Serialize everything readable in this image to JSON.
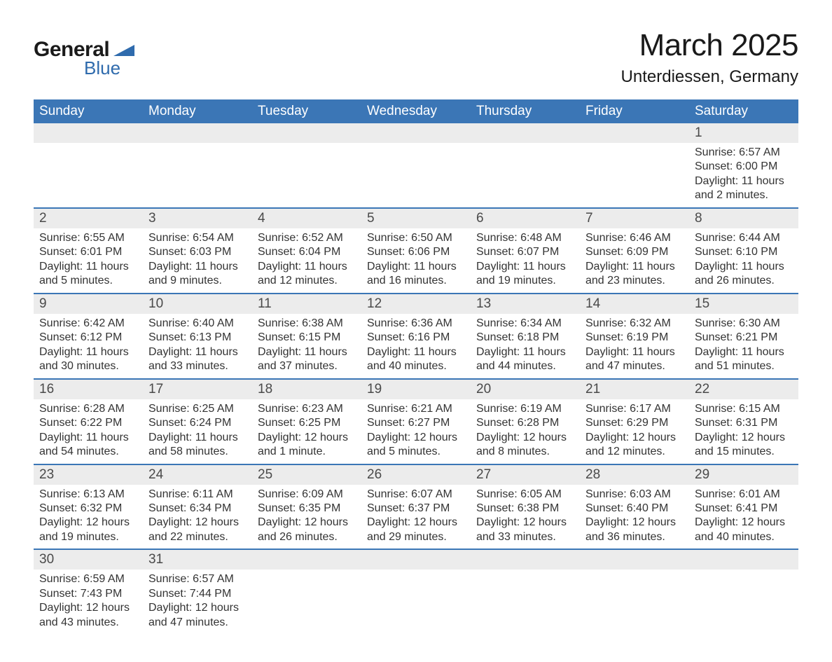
{
  "logo": {
    "text_general": "General",
    "text_blue": "Blue",
    "triangle_color": "#2f6bad",
    "text_color_dark": "#1a1a1a"
  },
  "title": {
    "month": "March 2025",
    "location": "Unterdiessen, Germany"
  },
  "colors": {
    "header_bg": "#3b76b6",
    "header_text": "#ffffff",
    "daynum_bg": "#ececec",
    "daynum_text": "#4a4a4a",
    "border": "#3b76b6",
    "body_text": "#333333"
  },
  "weekdays": [
    "Sunday",
    "Monday",
    "Tuesday",
    "Wednesday",
    "Thursday",
    "Friday",
    "Saturday"
  ],
  "weeks": [
    {
      "nums": [
        "",
        "",
        "",
        "",
        "",
        "",
        "1"
      ],
      "details": [
        null,
        null,
        null,
        null,
        null,
        null,
        {
          "sunrise": "Sunrise: 6:57 AM",
          "sunset": "Sunset: 6:00 PM",
          "day1": "Daylight: 11 hours",
          "day2": "and 2 minutes."
        }
      ]
    },
    {
      "nums": [
        "2",
        "3",
        "4",
        "5",
        "6",
        "7",
        "8"
      ],
      "details": [
        {
          "sunrise": "Sunrise: 6:55 AM",
          "sunset": "Sunset: 6:01 PM",
          "day1": "Daylight: 11 hours",
          "day2": "and 5 minutes."
        },
        {
          "sunrise": "Sunrise: 6:54 AM",
          "sunset": "Sunset: 6:03 PM",
          "day1": "Daylight: 11 hours",
          "day2": "and 9 minutes."
        },
        {
          "sunrise": "Sunrise: 6:52 AM",
          "sunset": "Sunset: 6:04 PM",
          "day1": "Daylight: 11 hours",
          "day2": "and 12 minutes."
        },
        {
          "sunrise": "Sunrise: 6:50 AM",
          "sunset": "Sunset: 6:06 PM",
          "day1": "Daylight: 11 hours",
          "day2": "and 16 minutes."
        },
        {
          "sunrise": "Sunrise: 6:48 AM",
          "sunset": "Sunset: 6:07 PM",
          "day1": "Daylight: 11 hours",
          "day2": "and 19 minutes."
        },
        {
          "sunrise": "Sunrise: 6:46 AM",
          "sunset": "Sunset: 6:09 PM",
          "day1": "Daylight: 11 hours",
          "day2": "and 23 minutes."
        },
        {
          "sunrise": "Sunrise: 6:44 AM",
          "sunset": "Sunset: 6:10 PM",
          "day1": "Daylight: 11 hours",
          "day2": "and 26 minutes."
        }
      ]
    },
    {
      "nums": [
        "9",
        "10",
        "11",
        "12",
        "13",
        "14",
        "15"
      ],
      "details": [
        {
          "sunrise": "Sunrise: 6:42 AM",
          "sunset": "Sunset: 6:12 PM",
          "day1": "Daylight: 11 hours",
          "day2": "and 30 minutes."
        },
        {
          "sunrise": "Sunrise: 6:40 AM",
          "sunset": "Sunset: 6:13 PM",
          "day1": "Daylight: 11 hours",
          "day2": "and 33 minutes."
        },
        {
          "sunrise": "Sunrise: 6:38 AM",
          "sunset": "Sunset: 6:15 PM",
          "day1": "Daylight: 11 hours",
          "day2": "and 37 minutes."
        },
        {
          "sunrise": "Sunrise: 6:36 AM",
          "sunset": "Sunset: 6:16 PM",
          "day1": "Daylight: 11 hours",
          "day2": "and 40 minutes."
        },
        {
          "sunrise": "Sunrise: 6:34 AM",
          "sunset": "Sunset: 6:18 PM",
          "day1": "Daylight: 11 hours",
          "day2": "and 44 minutes."
        },
        {
          "sunrise": "Sunrise: 6:32 AM",
          "sunset": "Sunset: 6:19 PM",
          "day1": "Daylight: 11 hours",
          "day2": "and 47 minutes."
        },
        {
          "sunrise": "Sunrise: 6:30 AM",
          "sunset": "Sunset: 6:21 PM",
          "day1": "Daylight: 11 hours",
          "day2": "and 51 minutes."
        }
      ]
    },
    {
      "nums": [
        "16",
        "17",
        "18",
        "19",
        "20",
        "21",
        "22"
      ],
      "details": [
        {
          "sunrise": "Sunrise: 6:28 AM",
          "sunset": "Sunset: 6:22 PM",
          "day1": "Daylight: 11 hours",
          "day2": "and 54 minutes."
        },
        {
          "sunrise": "Sunrise: 6:25 AM",
          "sunset": "Sunset: 6:24 PM",
          "day1": "Daylight: 11 hours",
          "day2": "and 58 minutes."
        },
        {
          "sunrise": "Sunrise: 6:23 AM",
          "sunset": "Sunset: 6:25 PM",
          "day1": "Daylight: 12 hours",
          "day2": "and 1 minute."
        },
        {
          "sunrise": "Sunrise: 6:21 AM",
          "sunset": "Sunset: 6:27 PM",
          "day1": "Daylight: 12 hours",
          "day2": "and 5 minutes."
        },
        {
          "sunrise": "Sunrise: 6:19 AM",
          "sunset": "Sunset: 6:28 PM",
          "day1": "Daylight: 12 hours",
          "day2": "and 8 minutes."
        },
        {
          "sunrise": "Sunrise: 6:17 AM",
          "sunset": "Sunset: 6:29 PM",
          "day1": "Daylight: 12 hours",
          "day2": "and 12 minutes."
        },
        {
          "sunrise": "Sunrise: 6:15 AM",
          "sunset": "Sunset: 6:31 PM",
          "day1": "Daylight: 12 hours",
          "day2": "and 15 minutes."
        }
      ]
    },
    {
      "nums": [
        "23",
        "24",
        "25",
        "26",
        "27",
        "28",
        "29"
      ],
      "details": [
        {
          "sunrise": "Sunrise: 6:13 AM",
          "sunset": "Sunset: 6:32 PM",
          "day1": "Daylight: 12 hours",
          "day2": "and 19 minutes."
        },
        {
          "sunrise": "Sunrise: 6:11 AM",
          "sunset": "Sunset: 6:34 PM",
          "day1": "Daylight: 12 hours",
          "day2": "and 22 minutes."
        },
        {
          "sunrise": "Sunrise: 6:09 AM",
          "sunset": "Sunset: 6:35 PM",
          "day1": "Daylight: 12 hours",
          "day2": "and 26 minutes."
        },
        {
          "sunrise": "Sunrise: 6:07 AM",
          "sunset": "Sunset: 6:37 PM",
          "day1": "Daylight: 12 hours",
          "day2": "and 29 minutes."
        },
        {
          "sunrise": "Sunrise: 6:05 AM",
          "sunset": "Sunset: 6:38 PM",
          "day1": "Daylight: 12 hours",
          "day2": "and 33 minutes."
        },
        {
          "sunrise": "Sunrise: 6:03 AM",
          "sunset": "Sunset: 6:40 PM",
          "day1": "Daylight: 12 hours",
          "day2": "and 36 minutes."
        },
        {
          "sunrise": "Sunrise: 6:01 AM",
          "sunset": "Sunset: 6:41 PM",
          "day1": "Daylight: 12 hours",
          "day2": "and 40 minutes."
        }
      ]
    },
    {
      "nums": [
        "30",
        "31",
        "",
        "",
        "",
        "",
        ""
      ],
      "details": [
        {
          "sunrise": "Sunrise: 6:59 AM",
          "sunset": "Sunset: 7:43 PM",
          "day1": "Daylight: 12 hours",
          "day2": "and 43 minutes."
        },
        {
          "sunrise": "Sunrise: 6:57 AM",
          "sunset": "Sunset: 7:44 PM",
          "day1": "Daylight: 12 hours",
          "day2": "and 47 minutes."
        },
        null,
        null,
        null,
        null,
        null
      ]
    }
  ]
}
